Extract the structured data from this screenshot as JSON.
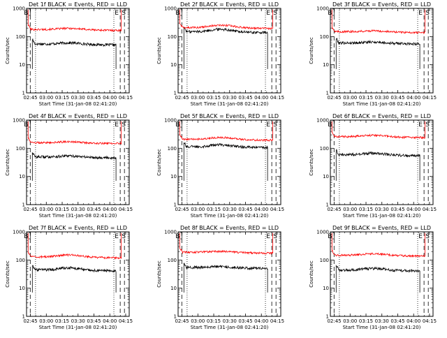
{
  "page": {
    "colors": {
      "events": "#000000",
      "lld": "#ff0000",
      "axis": "#000000",
      "background": "#ffffff"
    }
  },
  "shared": {
    "ylabel": "Counts/sec",
    "xlabel": "Start Time (31-Jan-08 02:41:20)",
    "x_tick_labels": [
      "02:45",
      "03:00",
      "03:15",
      "03:30",
      "03:45",
      "04:00",
      "04:15"
    ],
    "y_tick_labels": [
      "1",
      "10",
      "100",
      "1000"
    ],
    "begin_marker": "B",
    "end_marker": "E"
  },
  "chart_data": [
    {
      "type": "line",
      "title": "Det 1f BLACK = Events, RED = LLD",
      "x_unit": "minutes after 02:41:20",
      "ylim": [
        1,
        1000
      ],
      "yscale": "log",
      "xlim": [
        0,
        97
      ],
      "events_level": 55,
      "lld_level": 180,
      "events_start": 5.5,
      "events_end": 84.5,
      "lld_start": 1.5,
      "lld_end": 89.5,
      "hump": 0.12,
      "dashed_lines": [
        3.5,
        88.5,
        92.5
      ],
      "dotted_lines": [
        8.5,
        82.5
      ],
      "series": [
        {
          "name": "Events",
          "color": "#000000"
        },
        {
          "name": "LLD",
          "color": "#ff0000"
        }
      ]
    },
    {
      "type": "line",
      "title": "Det 2f BLACK = Events, RED = LLD",
      "x_unit": "minutes after 02:41:20",
      "ylim": [
        1,
        1000
      ],
      "yscale": "log",
      "xlim": [
        0,
        97
      ],
      "events_level": 150,
      "lld_level": 210,
      "events_start": 5.5,
      "events_end": 84.5,
      "lld_start": 1.5,
      "lld_end": 89.5,
      "hump": 0.25,
      "dashed_lines": [
        3.5,
        88.5,
        92.5
      ],
      "dotted_lines": [
        8.5,
        82.5
      ],
      "series": [
        {
          "name": "Events",
          "color": "#000000"
        },
        {
          "name": "LLD",
          "color": "#ff0000"
        }
      ]
    },
    {
      "type": "line",
      "title": "Det 3f BLACK = Events, RED = LLD",
      "x_unit": "minutes after 02:41:20",
      "ylim": [
        1,
        1000
      ],
      "yscale": "log",
      "xlim": [
        0,
        97
      ],
      "events_level": 60,
      "lld_level": 150,
      "events_start": 5.5,
      "events_end": 84.5,
      "lld_start": 1.5,
      "lld_end": 89.5,
      "hump": 0.1,
      "dashed_lines": [
        3.5,
        88.5,
        92.5
      ],
      "dotted_lines": [
        8.5,
        82.5
      ],
      "series": [
        {
          "name": "Events",
          "color": "#000000"
        },
        {
          "name": "LLD",
          "color": "#ff0000"
        }
      ]
    },
    {
      "type": "line",
      "title": "Det 4f BLACK = Events, RED = LLD",
      "x_unit": "minutes after 02:41:20",
      "ylim": [
        1,
        1000
      ],
      "yscale": "log",
      "xlim": [
        0,
        97
      ],
      "events_level": 50,
      "lld_level": 160,
      "events_start": 5.5,
      "events_end": 84.5,
      "lld_start": 1.5,
      "lld_end": 89.5,
      "hump": 0.1,
      "dashed_lines": [
        3.5,
        88.5,
        92.5
      ],
      "dotted_lines": [
        8.5,
        82.5
      ],
      "series": [
        {
          "name": "Events",
          "color": "#000000"
        },
        {
          "name": "LLD",
          "color": "#ff0000"
        }
      ]
    },
    {
      "type": "line",
      "title": "Det 5f BLACK = Events, RED = LLD",
      "x_unit": "minutes after 02:41:20",
      "ylim": [
        1,
        1000
      ],
      "yscale": "log",
      "xlim": [
        0,
        97
      ],
      "events_level": 115,
      "lld_level": 210,
      "events_start": 5.5,
      "events_end": 84.5,
      "lld_start": 1.5,
      "lld_end": 89.5,
      "hump": 0.2,
      "dashed_lines": [
        3.5,
        88.5,
        92.5
      ],
      "dotted_lines": [
        8.5,
        82.5
      ],
      "series": [
        {
          "name": "Events",
          "color": "#000000"
        },
        {
          "name": "LLD",
          "color": "#ff0000"
        }
      ]
    },
    {
      "type": "line",
      "title": "Det 6f BLACK = Events, RED = LLD",
      "x_unit": "minutes after 02:41:20",
      "ylim": [
        1,
        1000
      ],
      "yscale": "log",
      "xlim": [
        0,
        97
      ],
      "events_level": 60,
      "lld_level": 260,
      "events_start": 5.5,
      "events_end": 84.5,
      "lld_start": 1.5,
      "lld_end": 89.5,
      "hump": 0.15,
      "dashed_lines": [
        3.5,
        88.5,
        92.5
      ],
      "dotted_lines": [
        8.5,
        82.5
      ],
      "series": [
        {
          "name": "Events",
          "color": "#000000"
        },
        {
          "name": "LLD",
          "color": "#ff0000"
        }
      ]
    },
    {
      "type": "line",
      "title": "Det 7f BLACK = Events, RED = LLD",
      "x_unit": "minutes after 02:41:20",
      "ylim": [
        1,
        1000
      ],
      "yscale": "log",
      "xlim": [
        0,
        97
      ],
      "events_level": 45,
      "lld_level": 130,
      "events_start": 5.5,
      "events_end": 84.5,
      "lld_start": 1.5,
      "lld_end": 89.5,
      "hump": 0.2,
      "dashed_lines": [
        3.5,
        88.5,
        92.5
      ],
      "dotted_lines": [
        8.5,
        82.5
      ],
      "series": [
        {
          "name": "Events",
          "color": "#000000"
        },
        {
          "name": "LLD",
          "color": "#ff0000"
        }
      ]
    },
    {
      "type": "line",
      "title": "Det 8f BLACK = Events, RED = LLD",
      "x_unit": "minutes after 02:41:20",
      "ylim": [
        1,
        1000
      ],
      "yscale": "log",
      "xlim": [
        0,
        97
      ],
      "events_level": 55,
      "lld_level": 190,
      "events_start": 5.5,
      "events_end": 84.5,
      "lld_start": 1.5,
      "lld_end": 89.5,
      "hump": 0.1,
      "dashed_lines": [
        3.5,
        88.5,
        92.5
      ],
      "dotted_lines": [
        8.5,
        82.5
      ],
      "series": [
        {
          "name": "Events",
          "color": "#000000"
        },
        {
          "name": "LLD",
          "color": "#ff0000"
        }
      ]
    },
    {
      "type": "line",
      "title": "Det 9f BLACK = Events, RED = LLD",
      "x_unit": "minutes after 02:41:20",
      "ylim": [
        1,
        1000
      ],
      "yscale": "log",
      "xlim": [
        0,
        97
      ],
      "events_level": 45,
      "lld_level": 150,
      "events_start": 5.5,
      "events_end": 84.5,
      "lld_start": 1.5,
      "lld_end": 89.5,
      "hump": 0.15,
      "dashed_lines": [
        3.5,
        88.5,
        92.5
      ],
      "dotted_lines": [
        8.5,
        82.5
      ],
      "series": [
        {
          "name": "Events",
          "color": "#000000"
        },
        {
          "name": "LLD",
          "color": "#ff0000"
        }
      ]
    }
  ]
}
